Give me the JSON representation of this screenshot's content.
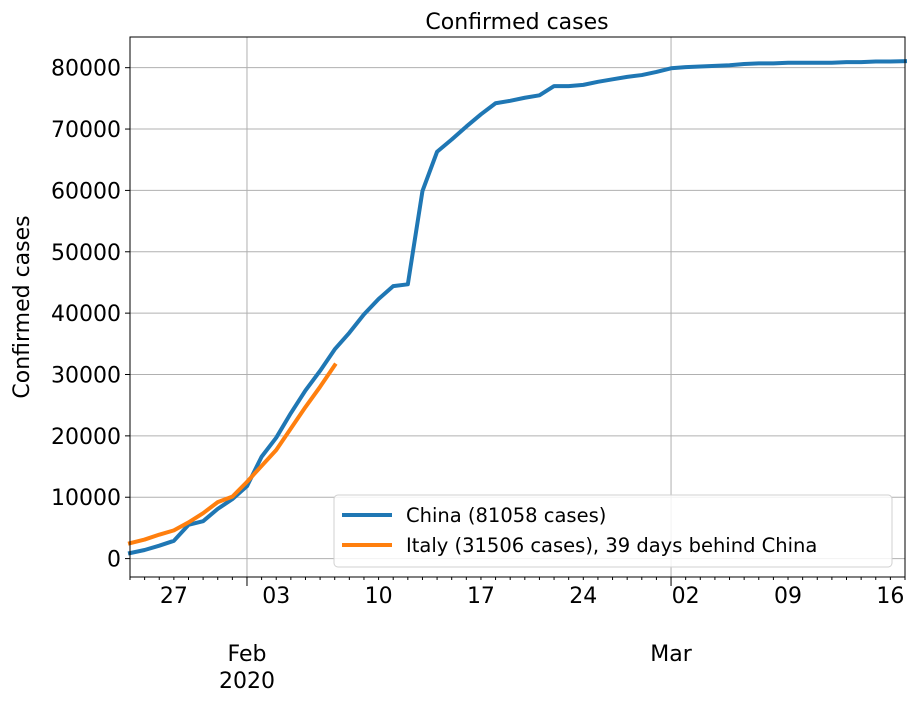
{
  "chart_data": {
    "type": "line",
    "title": "Confirmed cases",
    "xlabel": "",
    "ylabel": "Confirmed cases",
    "ylim": [
      -3000,
      85000
    ],
    "xlim": [
      "2020-01-24",
      "2020-03-17"
    ],
    "y_ticks": [
      0,
      10000,
      20000,
      30000,
      40000,
      50000,
      60000,
      70000,
      80000
    ],
    "x_ticks": [
      {
        "date": "2020-01-27",
        "label": "27"
      },
      {
        "date": "2020-02-03",
        "label": "03"
      },
      {
        "date": "2020-02-10",
        "label": "10"
      },
      {
        "date": "2020-02-17",
        "label": "17"
      },
      {
        "date": "2020-02-24",
        "label": "24"
      },
      {
        "date": "2020-03-02",
        "label": "02"
      },
      {
        "date": "2020-03-09",
        "label": "09"
      },
      {
        "date": "2020-03-16",
        "label": "16"
      }
    ],
    "month_labels": [
      {
        "date": "2020-02-01",
        "label": "Feb",
        "year": "2020"
      },
      {
        "date": "2020-03-01",
        "label": "Mar",
        "year": ""
      }
    ],
    "grid": true,
    "legend_position": "lower-right",
    "series": [
      {
        "name": "China (81058 cases)",
        "color": "#1f77b4",
        "points": [
          [
            "2020-01-24",
            900
          ],
          [
            "2020-01-25",
            1400
          ],
          [
            "2020-01-26",
            2100
          ],
          [
            "2020-01-27",
            2900
          ],
          [
            "2020-01-28",
            5500
          ],
          [
            "2020-01-29",
            6100
          ],
          [
            "2020-01-30",
            8100
          ],
          [
            "2020-01-31",
            9700
          ],
          [
            "2020-02-01",
            11800
          ],
          [
            "2020-02-02",
            16600
          ],
          [
            "2020-02-03",
            19700
          ],
          [
            "2020-02-04",
            23700
          ],
          [
            "2020-02-05",
            27400
          ],
          [
            "2020-02-06",
            30600
          ],
          [
            "2020-02-07",
            34100
          ],
          [
            "2020-02-08",
            36800
          ],
          [
            "2020-02-09",
            39800
          ],
          [
            "2020-02-10",
            42300
          ],
          [
            "2020-02-11",
            44400
          ],
          [
            "2020-02-12",
            44700
          ],
          [
            "2020-02-13",
            59900
          ],
          [
            "2020-02-14",
            66300
          ],
          [
            "2020-02-15",
            68300
          ],
          [
            "2020-02-16",
            70400
          ],
          [
            "2020-02-17",
            72400
          ],
          [
            "2020-02-18",
            74200
          ],
          [
            "2020-02-19",
            74600
          ],
          [
            "2020-02-20",
            75100
          ],
          [
            "2020-02-21",
            75500
          ],
          [
            "2020-02-22",
            77000
          ],
          [
            "2020-02-23",
            77000
          ],
          [
            "2020-02-24",
            77200
          ],
          [
            "2020-02-25",
            77700
          ],
          [
            "2020-02-26",
            78100
          ],
          [
            "2020-02-27",
            78500
          ],
          [
            "2020-02-28",
            78800
          ],
          [
            "2020-02-29",
            79300
          ],
          [
            "2020-03-01",
            79900
          ],
          [
            "2020-03-02",
            80100
          ],
          [
            "2020-03-03",
            80200
          ],
          [
            "2020-03-04",
            80300
          ],
          [
            "2020-03-05",
            80400
          ],
          [
            "2020-03-06",
            80600
          ],
          [
            "2020-03-07",
            80700
          ],
          [
            "2020-03-08",
            80700
          ],
          [
            "2020-03-09",
            80800
          ],
          [
            "2020-03-10",
            80800
          ],
          [
            "2020-03-11",
            80800
          ],
          [
            "2020-03-12",
            80800
          ],
          [
            "2020-03-13",
            80900
          ],
          [
            "2020-03-14",
            80900
          ],
          [
            "2020-03-15",
            81000
          ],
          [
            "2020-03-16",
            81000
          ],
          [
            "2020-03-17",
            81058
          ]
        ]
      },
      {
        "name": "Italy (31506 cases), 39 days behind China",
        "color": "#ff7f0e",
        "points": [
          [
            "2020-01-24",
            2500
          ],
          [
            "2020-01-25",
            3100
          ],
          [
            "2020-01-26",
            3900
          ],
          [
            "2020-01-27",
            4600
          ],
          [
            "2020-01-28",
            5900
          ],
          [
            "2020-01-29",
            7400
          ],
          [
            "2020-01-30",
            9200
          ],
          [
            "2020-01-31",
            10100
          ],
          [
            "2020-02-01",
            12500
          ],
          [
            "2020-02-02",
            15100
          ],
          [
            "2020-02-03",
            17700
          ],
          [
            "2020-02-04",
            21200
          ],
          [
            "2020-02-05",
            24700
          ],
          [
            "2020-02-06",
            28000
          ],
          [
            "2020-02-07",
            31506
          ]
        ]
      }
    ]
  }
}
